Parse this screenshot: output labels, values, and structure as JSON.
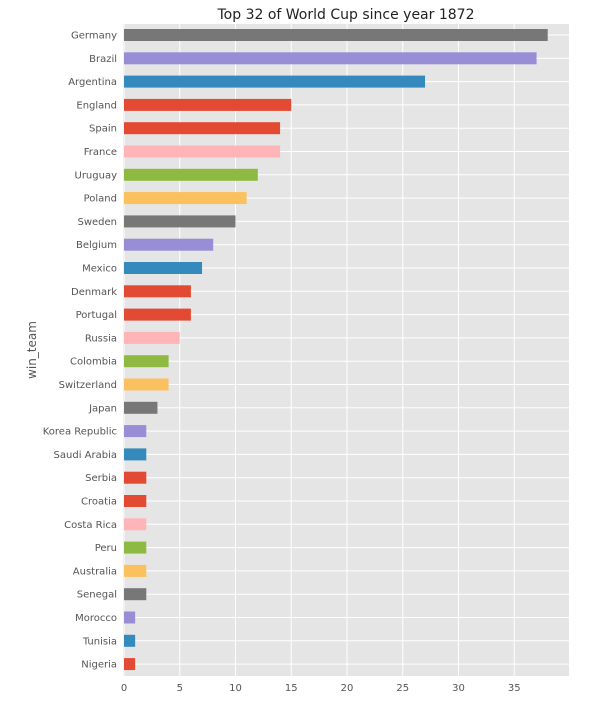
{
  "chart_data": {
    "type": "bar",
    "orientation": "horizontal",
    "title": "Top 32 of World Cup since year 1872",
    "xlabel": "",
    "ylabel": "win_team",
    "xlim": [
      0,
      40
    ],
    "xticks": [
      0,
      5,
      10,
      15,
      20,
      25,
      30,
      35
    ],
    "grid": true,
    "categories": [
      "Germany",
      "Brazil",
      "Argentina",
      "England",
      "Spain",
      "France",
      "Uruguay",
      "Poland",
      "Sweden",
      "Belgium",
      "Mexico",
      "Denmark",
      "Portugal",
      "Russia",
      "Colombia",
      "Switzerland",
      "Japan",
      "Korea Republic",
      "Saudi Arabia",
      "Serbia",
      "Croatia",
      "Costa Rica",
      "Peru",
      "Australia",
      "Senegal",
      "Morocco",
      "Tunisia",
      "Nigeria"
    ],
    "values": [
      38,
      37,
      27,
      15,
      14,
      14,
      12,
      11,
      10,
      8,
      7,
      6,
      6,
      5,
      4,
      4,
      3,
      2,
      2,
      2,
      2,
      2,
      2,
      2,
      2,
      1,
      1,
      1
    ],
    "colors": [
      "#777777",
      "#988ED5",
      "#348ABD",
      "#E24A33",
      "#E24A33",
      "#FFB5B8",
      "#8EBA42",
      "#FBC15E",
      "#777777",
      "#988ED5",
      "#348ABD",
      "#E24A33",
      "#E24A33",
      "#FFB5B8",
      "#8EBA42",
      "#FBC15E",
      "#777777",
      "#988ED5",
      "#348ABD",
      "#E24A33",
      "#E24A33",
      "#FFB5B8",
      "#8EBA42",
      "#FBC15E",
      "#777777",
      "#988ED5",
      "#348ABD",
      "#E24A33"
    ]
  }
}
